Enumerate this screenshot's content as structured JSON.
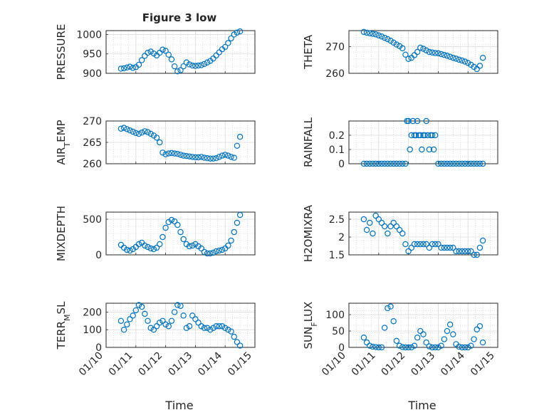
{
  "figure": {
    "title": "Figure 3 low",
    "xlabel": "Time",
    "x_ticks": [
      "01/10",
      "01/11",
      "01/12",
      "01/13",
      "01/14",
      "01/15"
    ]
  },
  "colors": {
    "marker": "#0072BD",
    "grid": "#c8c8c8",
    "axis": "#262626"
  },
  "chart_data": [
    {
      "type": "scatter",
      "id": "pressure",
      "ylabel": "PRESSURE",
      "xlim": [
        0,
        5
      ],
      "ylim": [
        900,
        1010
      ],
      "yticks": [
        900,
        950,
        1000
      ],
      "ytick_labels": [
        "900",
        "950",
        "1000"
      ],
      "x": [
        0.5,
        0.6,
        0.7,
        0.8,
        0.9,
        1.0,
        1.1,
        1.2,
        1.3,
        1.4,
        1.5,
        1.6,
        1.7,
        1.8,
        1.9,
        2.0,
        2.1,
        2.2,
        2.3,
        2.4,
        2.5,
        2.6,
        2.7,
        2.8,
        2.9,
        3.0,
        3.1,
        3.2,
        3.3,
        3.4,
        3.5,
        3.6,
        3.7,
        3.8,
        3.9,
        4.0,
        4.1,
        4.2,
        4.3,
        4.4,
        4.5
      ],
      "y": [
        912,
        913,
        915,
        917,
        914,
        916,
        922,
        934,
        945,
        953,
        956,
        951,
        946,
        953,
        961,
        958,
        948,
        936,
        918,
        905,
        908,
        918,
        928,
        923,
        920,
        919,
        920,
        921,
        924,
        928,
        932,
        938,
        946,
        954,
        962,
        968,
        978,
        990,
        1000,
        1005,
        1008
      ]
    },
    {
      "type": "scatter",
      "id": "theta",
      "ylabel": "THETA",
      "xlim": [
        0,
        5
      ],
      "ylim": [
        260,
        276
      ],
      "yticks": [
        260,
        270
      ],
      "ytick_labels": [
        "260",
        "270"
      ],
      "x": [
        0.5,
        0.6,
        0.7,
        0.8,
        0.9,
        1.0,
        1.1,
        1.2,
        1.3,
        1.4,
        1.5,
        1.6,
        1.7,
        1.8,
        1.9,
        2.0,
        2.1,
        2.2,
        2.3,
        2.4,
        2.5,
        2.6,
        2.7,
        2.8,
        2.9,
        3.0,
        3.1,
        3.2,
        3.3,
        3.4,
        3.5,
        3.6,
        3.7,
        3.8,
        3.9,
        4.0,
        4.1,
        4.2,
        4.3,
        4.4,
        4.5
      ],
      "y": [
        275.5,
        275.2,
        275.0,
        274.8,
        274.6,
        274.2,
        273.8,
        273.3,
        272.8,
        272.2,
        271.5,
        270.8,
        270.2,
        269.4,
        267.0,
        265.4,
        265.8,
        266.8,
        268.0,
        269.6,
        269.2,
        268.6,
        268.0,
        267.8,
        267.6,
        267.5,
        267.2,
        266.9,
        266.6,
        266.2,
        265.8,
        265.5,
        265.1,
        264.8,
        264.4,
        263.9,
        263.2,
        262.4,
        261.6,
        262.8,
        265.8
      ]
    },
    {
      "type": "scatter",
      "id": "air_temp",
      "ylabel_main": "AIR",
      "ylabel_sub": "T",
      "ylabel_rest": "EMP",
      "xlim": [
        0,
        5
      ],
      "ylim": [
        260,
        270
      ],
      "yticks": [
        260,
        265,
        270
      ],
      "ytick_labels": [
        "260",
        "265",
        "270"
      ],
      "x": [
        0.5,
        0.6,
        0.7,
        0.8,
        0.9,
        1.0,
        1.1,
        1.2,
        1.3,
        1.4,
        1.5,
        1.6,
        1.7,
        1.8,
        1.9,
        2.0,
        2.1,
        2.2,
        2.3,
        2.4,
        2.5,
        2.6,
        2.7,
        2.8,
        2.9,
        3.0,
        3.1,
        3.2,
        3.3,
        3.4,
        3.5,
        3.6,
        3.7,
        3.8,
        3.9,
        4.0,
        4.1,
        4.2,
        4.3,
        4.4,
        4.5
      ],
      "y": [
        268.2,
        268.4,
        268.1,
        267.8,
        267.5,
        267.2,
        267.0,
        267.3,
        267.6,
        267.4,
        267.0,
        266.6,
        266.1,
        265.0,
        262.6,
        262.2,
        262.4,
        262.5,
        262.4,
        262.3,
        262.1,
        261.9,
        261.8,
        261.7,
        261.6,
        261.5,
        261.5,
        261.6,
        261.4,
        261.3,
        261.2,
        261.2,
        261.3,
        261.6,
        261.9,
        262.1,
        261.9,
        261.6,
        261.4,
        264.2,
        266.3
      ]
    },
    {
      "type": "scatter",
      "id": "rainfall",
      "ylabel": "RAINFALL",
      "xlim": [
        0,
        5
      ],
      "ylim": [
        0,
        0.3
      ],
      "yticks": [
        0,
        0.1,
        0.2
      ],
      "ytick_labels": [
        "0",
        "0.1",
        "0.2"
      ],
      "x": [
        0.5,
        0.6,
        0.7,
        0.8,
        0.9,
        1.0,
        1.1,
        1.2,
        1.3,
        1.4,
        1.5,
        1.6,
        1.7,
        1.8,
        1.9,
        1.95,
        2.0,
        2.05,
        2.1,
        2.15,
        2.2,
        2.25,
        2.3,
        2.35,
        2.4,
        2.45,
        2.5,
        2.55,
        2.6,
        2.65,
        2.7,
        2.75,
        2.8,
        2.85,
        2.9,
        3.0,
        3.1,
        3.2,
        3.3,
        3.4,
        3.5,
        3.6,
        3.7,
        3.8,
        3.9,
        4.0,
        4.1,
        4.2,
        4.3,
        4.4,
        4.5
      ],
      "y": [
        0,
        0,
        0,
        0,
        0,
        0,
        0,
        0,
        0,
        0,
        0,
        0,
        0,
        0,
        0,
        0.3,
        0.3,
        0.1,
        0.2,
        0.3,
        0.2,
        0.2,
        0.3,
        0.2,
        0.2,
        0.1,
        0.2,
        0.2,
        0.3,
        0.2,
        0.1,
        0.2,
        0.2,
        0.1,
        0.2,
        0,
        0,
        0,
        0,
        0,
        0,
        0,
        0,
        0,
        0,
        0,
        0,
        0,
        0,
        0,
        0
      ]
    },
    {
      "type": "scatter",
      "id": "mixdepth",
      "ylabel": "MIXDEPTH",
      "xlim": [
        0,
        5
      ],
      "ylim": [
        0,
        600
      ],
      "yticks": [
        0,
        500
      ],
      "ytick_labels": [
        "0",
        "500"
      ],
      "x": [
        0.5,
        0.6,
        0.7,
        0.8,
        0.9,
        1.0,
        1.1,
        1.2,
        1.3,
        1.4,
        1.5,
        1.6,
        1.7,
        1.8,
        1.9,
        2.0,
        2.1,
        2.2,
        2.3,
        2.4,
        2.5,
        2.6,
        2.7,
        2.8,
        2.9,
        3.0,
        3.1,
        3.2,
        3.3,
        3.4,
        3.5,
        3.6,
        3.7,
        3.8,
        3.9,
        4.0,
        4.1,
        4.2,
        4.3,
        4.4,
        4.5
      ],
      "y": [
        140,
        100,
        70,
        60,
        80,
        110,
        150,
        170,
        130,
        110,
        90,
        80,
        100,
        150,
        250,
        380,
        460,
        490,
        470,
        420,
        320,
        220,
        150,
        120,
        130,
        150,
        120,
        90,
        40,
        20,
        20,
        30,
        50,
        60,
        70,
        90,
        130,
        200,
        320,
        450,
        560
      ]
    },
    {
      "type": "scatter",
      "id": "h2omixra",
      "ylabel": "H2OMIXRA",
      "xlim": [
        0,
        5
      ],
      "ylim": [
        1.5,
        2.7
      ],
      "yticks": [
        1.5,
        2,
        2.5
      ],
      "ytick_labels": [
        "1.5",
        "2",
        "2.5"
      ],
      "x": [
        0.5,
        0.6,
        0.7,
        0.8,
        0.9,
        1.0,
        1.1,
        1.2,
        1.3,
        1.4,
        1.5,
        1.6,
        1.7,
        1.8,
        1.9,
        2.0,
        2.1,
        2.2,
        2.3,
        2.4,
        2.5,
        2.6,
        2.7,
        2.8,
        2.9,
        3.0,
        3.1,
        3.2,
        3.3,
        3.4,
        3.5,
        3.6,
        3.7,
        3.8,
        3.9,
        4.0,
        4.1,
        4.2,
        4.3,
        4.4,
        4.5
      ],
      "y": [
        2.5,
        2.2,
        2.4,
        2.1,
        2.6,
        2.5,
        2.4,
        2.3,
        2.1,
        2.3,
        2.4,
        2.3,
        2.2,
        2.1,
        1.8,
        1.6,
        1.7,
        1.8,
        1.8,
        1.8,
        1.8,
        1.8,
        1.7,
        1.8,
        1.8,
        1.8,
        1.7,
        1.7,
        1.7,
        1.7,
        1.7,
        1.6,
        1.6,
        1.6,
        1.6,
        1.6,
        1.6,
        1.5,
        1.5,
        1.7,
        1.9
      ]
    },
    {
      "type": "scatter",
      "id": "terr_msl",
      "ylabel_main": "TERR",
      "ylabel_sub": "M",
      "ylabel_rest": "SL",
      "xlim": [
        0,
        5
      ],
      "ylim": [
        0,
        250
      ],
      "yticks": [
        0,
        100,
        200
      ],
      "ytick_labels": [
        "0",
        "100",
        "200"
      ],
      "x": [
        0.5,
        0.6,
        0.7,
        0.8,
        0.9,
        1.0,
        1.1,
        1.2,
        1.3,
        1.4,
        1.5,
        1.6,
        1.7,
        1.8,
        1.9,
        2.0,
        2.1,
        2.2,
        2.3,
        2.4,
        2.5,
        2.6,
        2.7,
        2.8,
        2.9,
        3.0,
        3.1,
        3.2,
        3.3,
        3.4,
        3.5,
        3.6,
        3.7,
        3.8,
        3.9,
        4.0,
        4.1,
        4.2,
        4.3,
        4.4,
        4.5
      ],
      "y": [
        150,
        100,
        130,
        160,
        180,
        210,
        240,
        230,
        190,
        150,
        110,
        100,
        120,
        140,
        150,
        130,
        120,
        150,
        200,
        240,
        235,
        180,
        110,
        120,
        180,
        160,
        140,
        120,
        110,
        110,
        100,
        110,
        120,
        120,
        120,
        110,
        100,
        90,
        60,
        30,
        10
      ]
    },
    {
      "type": "scatter",
      "id": "sun_flux",
      "ylabel_main": "SUN",
      "ylabel_sub": "F",
      "ylabel_rest": "LUX",
      "xlim": [
        0,
        5
      ],
      "ylim": [
        0,
        135
      ],
      "yticks": [
        0,
        50,
        100
      ],
      "ytick_labels": [
        "0",
        "50",
        "100"
      ],
      "x": [
        0.5,
        0.6,
        0.7,
        0.8,
        0.9,
        1.0,
        1.1,
        1.2,
        1.3,
        1.4,
        1.5,
        1.6,
        1.7,
        1.8,
        1.9,
        2.0,
        2.1,
        2.2,
        2.3,
        2.4,
        2.5,
        2.6,
        2.7,
        2.8,
        2.9,
        3.0,
        3.1,
        3.2,
        3.3,
        3.4,
        3.5,
        3.6,
        3.7,
        3.8,
        3.9,
        4.0,
        4.1,
        4.2,
        4.3,
        4.4,
        4.5
      ],
      "y": [
        30,
        15,
        5,
        2,
        1,
        0,
        0,
        60,
        120,
        125,
        80,
        20,
        5,
        1,
        0,
        0,
        0,
        5,
        30,
        50,
        40,
        15,
        3,
        0,
        0,
        0,
        5,
        25,
        50,
        70,
        40,
        10,
        2,
        0,
        0,
        0,
        5,
        25,
        55,
        65,
        15
      ]
    }
  ]
}
